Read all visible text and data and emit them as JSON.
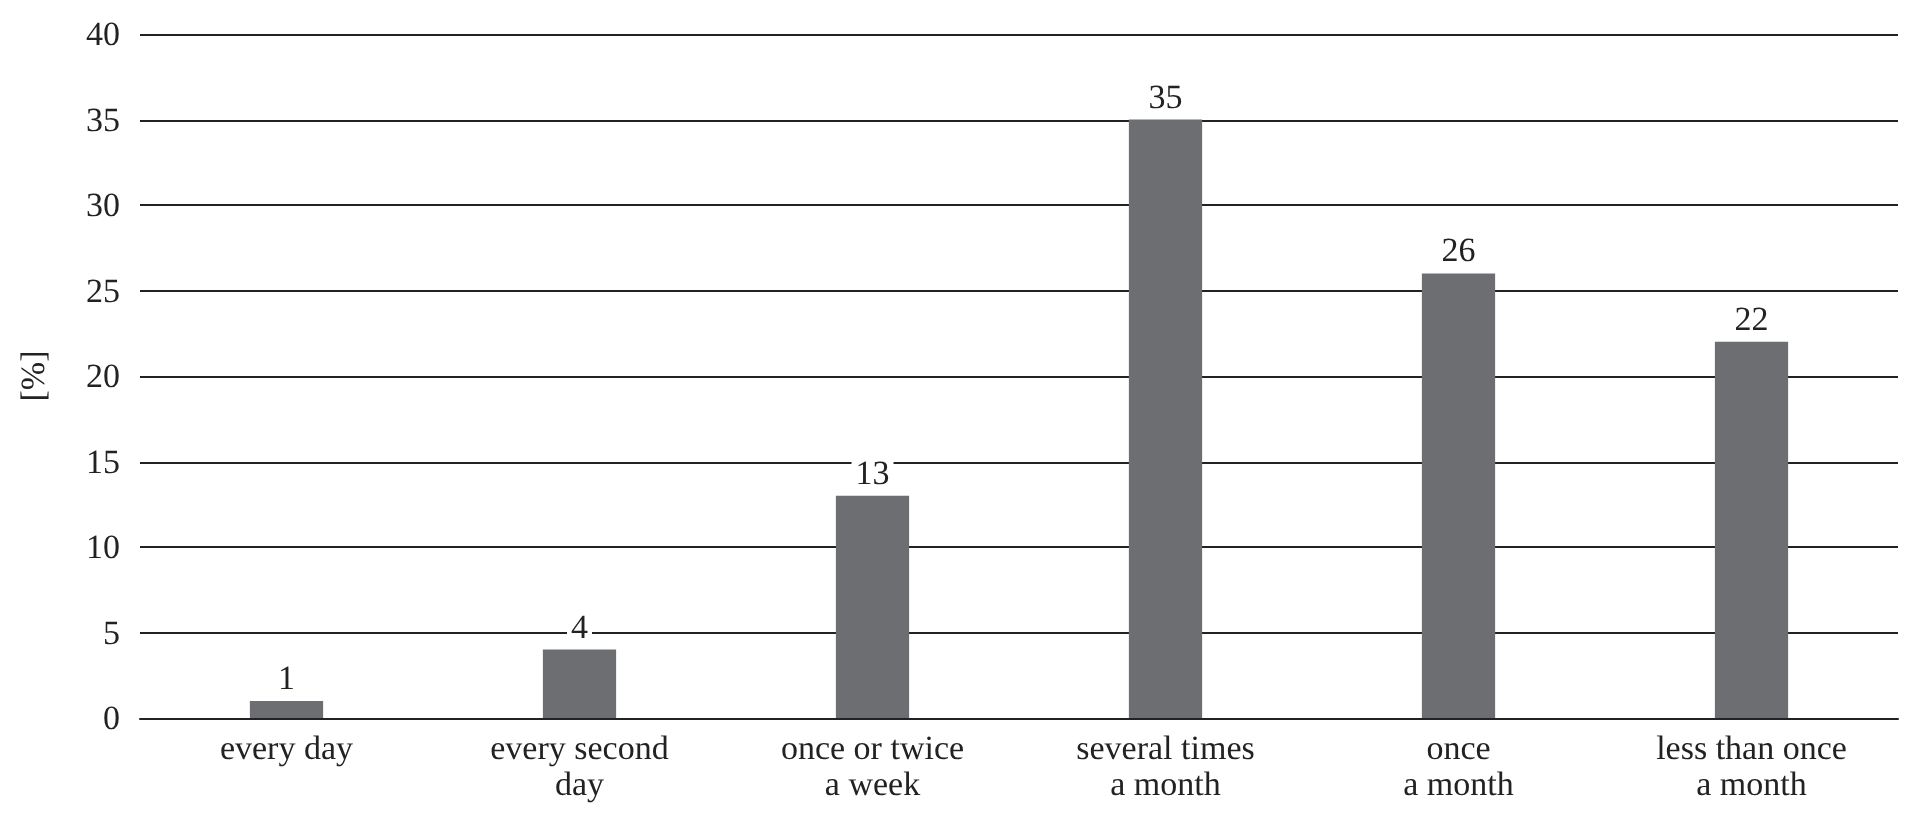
{
  "chart_data": {
    "type": "bar",
    "ylabel": "[%]",
    "categories": [
      "every day",
      "every second\nday",
      "once or twice\na week",
      "several times\na month",
      "once\na month",
      "less than once\na month"
    ],
    "values": [
      1,
      4,
      13,
      35,
      26,
      22
    ],
    "color": "#6d6e71",
    "ylim": [
      0,
      40
    ],
    "yticks": [
      0,
      5,
      10,
      15,
      20,
      25,
      30,
      35,
      40
    ],
    "grid": "y",
    "data_labels": true
  }
}
